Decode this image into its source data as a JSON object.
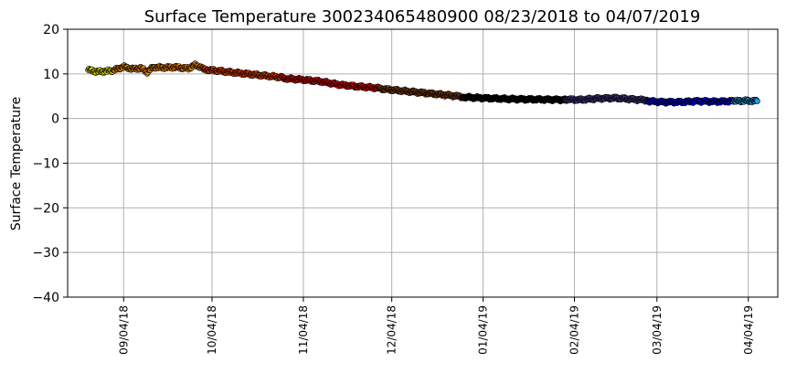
{
  "chart_data": {
    "type": "scatter",
    "title": "Surface Temperature 300234065480900  08/23/2018 to 04/07/2019",
    "xlabel": "",
    "ylabel": "Surface Temperature",
    "ylim": [
      -40,
      20
    ],
    "xlim": [
      "2018-08-16",
      "2019-04-14"
    ],
    "yticks": [
      20,
      10,
      0,
      -10,
      -20,
      -30,
      -40
    ],
    "ytick_labels": [
      "20",
      "10",
      "0",
      "−10",
      "−20",
      "−30",
      "−40"
    ],
    "xticks": [
      {
        "date": "2018-09-04",
        "label": "09/04/18"
      },
      {
        "date": "2018-10-04",
        "label": "10/04/18"
      },
      {
        "date": "2018-11-04",
        "label": "11/04/18"
      },
      {
        "date": "2018-12-04",
        "label": "12/04/18"
      },
      {
        "date": "2019-01-04",
        "label": "01/04/19"
      },
      {
        "date": "2019-02-04",
        "label": "02/04/19"
      },
      {
        "date": "2019-03-04",
        "label": "03/04/19"
      },
      {
        "date": "2019-04-04",
        "label": "04/04/19"
      }
    ],
    "grid": true,
    "series": [
      {
        "color": "#ffff00",
        "points": [
          [
            "2018-08-23",
            10.9
          ],
          [
            "2018-08-26",
            10.5
          ],
          [
            "2018-08-29",
            10.6
          ],
          [
            "2018-09-01",
            10.8
          ]
        ]
      },
      {
        "color": "#ff8c00",
        "points": [
          [
            "2018-09-01",
            10.9
          ],
          [
            "2018-09-04",
            11.6
          ],
          [
            "2018-09-07",
            11.1
          ],
          [
            "2018-09-10",
            11.3
          ],
          [
            "2018-09-12",
            10.4
          ],
          [
            "2018-09-14",
            11.5
          ],
          [
            "2018-09-18",
            11.4
          ],
          [
            "2018-09-22",
            11.5
          ],
          [
            "2018-09-26",
            11.2
          ],
          [
            "2018-09-28",
            12.0
          ],
          [
            "2018-10-01",
            11.4
          ]
        ]
      },
      {
        "color": "#ff4500",
        "points": [
          [
            "2018-10-01",
            11.0
          ],
          [
            "2018-10-06",
            10.7
          ],
          [
            "2018-10-10",
            10.4
          ],
          [
            "2018-10-16",
            10.0
          ],
          [
            "2018-10-22",
            9.6
          ],
          [
            "2018-10-28",
            9.2
          ]
        ]
      },
      {
        "color": "#ff0000",
        "points": [
          [
            "2018-10-28",
            9.0
          ],
          [
            "2018-11-04",
            8.7
          ],
          [
            "2018-11-10",
            8.3
          ],
          [
            "2018-11-16",
            7.6
          ],
          [
            "2018-11-22",
            7.2
          ],
          [
            "2018-11-30",
            6.8
          ]
        ]
      },
      {
        "color": "#8b4513",
        "points": [
          [
            "2018-11-30",
            6.7
          ],
          [
            "2018-12-06",
            6.3
          ],
          [
            "2018-12-14",
            5.8
          ],
          [
            "2018-12-22",
            5.3
          ],
          [
            "2018-12-28",
            4.9
          ]
        ]
      },
      {
        "color": "#000000",
        "points": [
          [
            "2018-12-28",
            4.8
          ],
          [
            "2019-01-04",
            4.6
          ],
          [
            "2019-01-12",
            4.4
          ],
          [
            "2019-01-20",
            4.3
          ],
          [
            "2019-02-01",
            4.2
          ]
        ]
      },
      {
        "color": "#483d8b",
        "points": [
          [
            "2019-02-01",
            4.3
          ],
          [
            "2019-02-06",
            4.2
          ],
          [
            "2019-02-12",
            4.5
          ],
          [
            "2019-02-18",
            4.6
          ],
          [
            "2019-02-24",
            4.3
          ],
          [
            "2019-03-01",
            4.1
          ]
        ]
      },
      {
        "color": "#0000ff",
        "points": [
          [
            "2019-03-01",
            3.9
          ],
          [
            "2019-03-06",
            3.7
          ],
          [
            "2019-03-12",
            3.7
          ],
          [
            "2019-03-18",
            3.9
          ],
          [
            "2019-03-24",
            3.8
          ],
          [
            "2019-03-30",
            3.9
          ]
        ]
      },
      {
        "color": "#1e9fe6",
        "points": [
          [
            "2019-03-30",
            3.9
          ],
          [
            "2019-04-03",
            4.0
          ],
          [
            "2019-04-07",
            3.9
          ]
        ]
      }
    ]
  }
}
